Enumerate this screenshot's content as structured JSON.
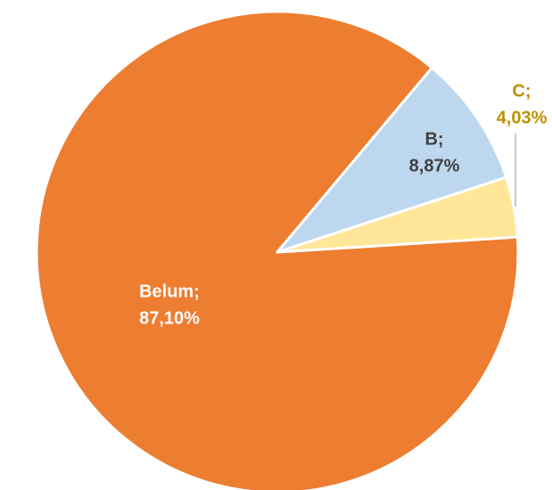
{
  "chart_data": {
    "type": "pie",
    "categories": [
      "Belum;",
      "B;",
      "C;"
    ],
    "values": [
      87.1,
      8.87,
      4.03
    ],
    "value_labels": [
      "87,10%",
      "8,87%",
      "4,03%"
    ],
    "colors": [
      "#ED7D31",
      "#BDD7EE",
      "#FFE699"
    ]
  }
}
